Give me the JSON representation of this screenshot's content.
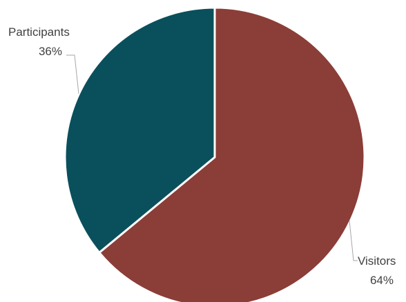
{
  "chart_data": {
    "type": "pie",
    "title": "",
    "start_angle_deg": 0,
    "direction": "clockwise",
    "slices": [
      {
        "name": "Visitors",
        "value": 64,
        "label": "64%",
        "color": "#8b3d38"
      },
      {
        "name": "Participants",
        "value": 36,
        "label": "36%",
        "color": "#0a505c"
      }
    ],
    "legend": "none",
    "data_labels": "outside-with-leader-lines",
    "slice_border_color": "#ffffff"
  }
}
